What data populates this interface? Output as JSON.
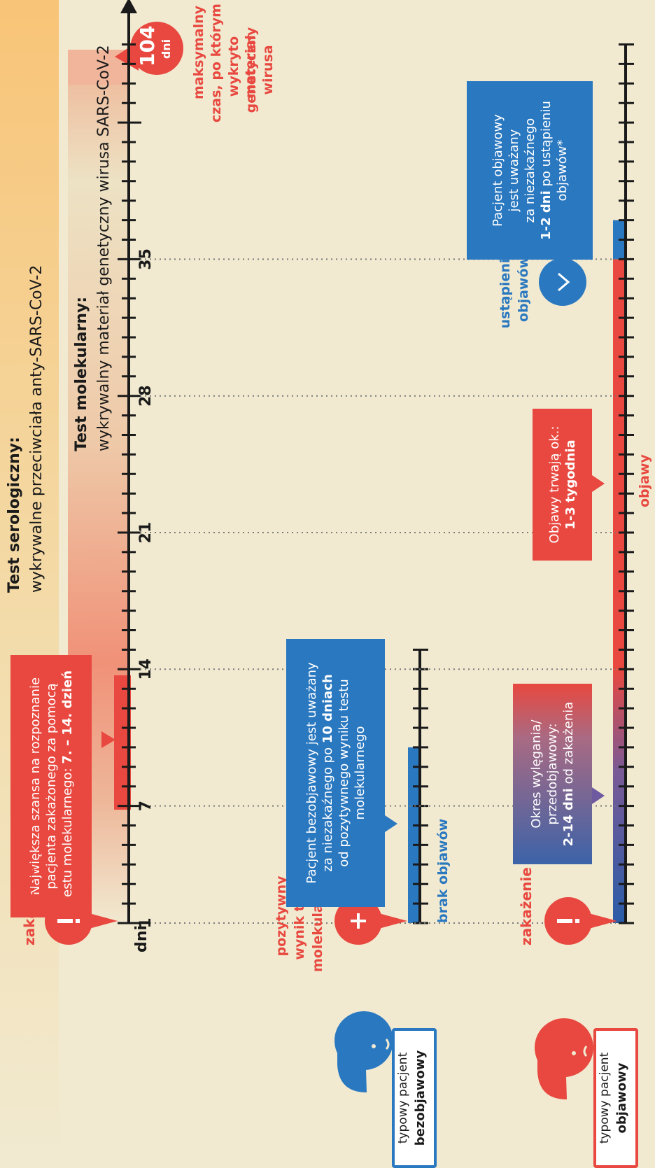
{
  "serology": {
    "title": "Test serologiczny:",
    "subtitle": "wykrywalne przeciwciała anty-SARS-CoV-2"
  },
  "molecular": {
    "title": "Test molekularny:",
    "subtitle": "wykrywalny materiał genetyczny wirusa SARS-CoV-2"
  },
  "max_marker": {
    "value": "104",
    "unit": "dni",
    "caption": [
      "maksymalny",
      "czas, po którym",
      "wykryto materiał",
      "genetyczny wirusa"
    ]
  },
  "best_chance": {
    "line1": "Największa szansa na rozpoznanie",
    "line2": "pacjenta zakażonego za pomocą",
    "line3_prefix": "testu molekularnego: ",
    "line3_bold": "7. – 14. dzień"
  },
  "infection_label": "zakażenie",
  "axis": {
    "unit_label": "dni",
    "ticks": [
      "1",
      "7",
      "14",
      "21",
      "28",
      "35"
    ]
  },
  "asymptomatic": {
    "patient_line1": "typowy pacjent",
    "patient_line2": "bezobjawowy",
    "positive_label": [
      "pozytywny",
      "wynik testu",
      "molekularnego"
    ],
    "no_symptoms_label": "brak objawów",
    "box": {
      "line1": "Pacjent bezobjawowy jest uważany",
      "line2_prefix": "za niezakaźnego po ",
      "line2_bold": "10 dniach",
      "line3": "od pozytywnego wyniku testu",
      "line4": "molekularnego"
    }
  },
  "symptomatic": {
    "patient_line1": "typowy pacjent",
    "patient_line2": "objawowy",
    "infection_label": "zakażenie",
    "incubation": {
      "line1": "Okres wylęgania/",
      "line2": "przedobjawowy:",
      "line3_bold": "2-14 dni",
      "line3_suffix": " od zakażenia"
    },
    "symptoms_box": {
      "line1": "Objawy trwają ok.:",
      "line2_bold": "1-3 tygodnia"
    },
    "symptoms_label": "objawy",
    "resolved_label": [
      "ustąpienie",
      "objawów"
    ],
    "noninfectious": {
      "line1": "Pacjent objawowy",
      "line2": "jest uważany",
      "line3": "za niezakaźnego",
      "line4_bold": "1-2 dni",
      "line4_suffix": " po ustąpieniu",
      "line5": "objawów*"
    }
  },
  "colors": {
    "background": "#f1ead1",
    "red": "#e8483f",
    "blue": "#2a78c0",
    "dark": "#1a1a1a",
    "orange_band": "#f8c477",
    "purple": "#6e5aa0"
  }
}
